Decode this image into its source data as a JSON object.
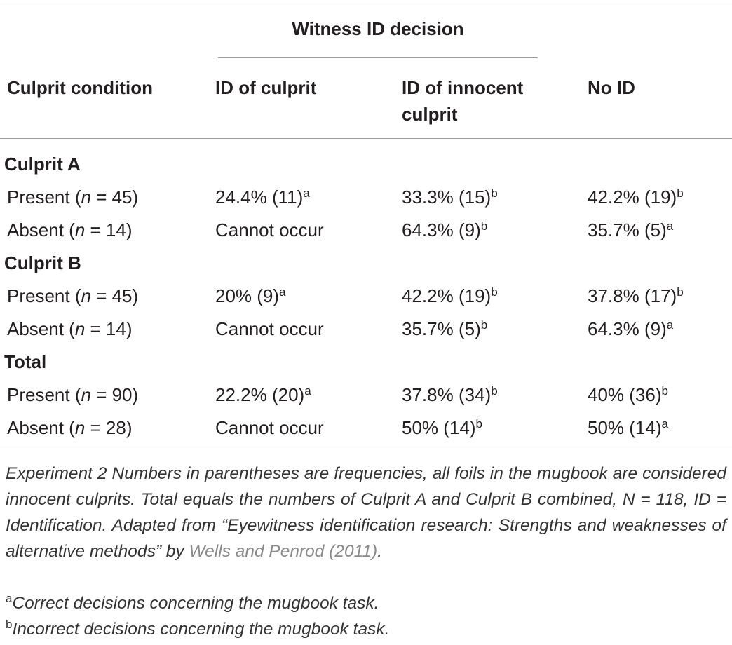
{
  "table": {
    "group_header": "Witness ID decision",
    "columns": [
      "Culprit condition",
      "ID of culprit",
      "ID of innocent culprit",
      "No ID"
    ],
    "sections": [
      {
        "title": "Culprit A",
        "rows": [
          {
            "label": [
              "Present (",
              "n",
              " = 45)"
            ],
            "cells": [
              {
                "text": "24.4% (11)",
                "sup": "a"
              },
              {
                "text": "33.3% (15)",
                "sup": "b"
              },
              {
                "text": "42.2% (19)",
                "sup": "b"
              }
            ]
          },
          {
            "label": [
              "Absent (",
              "n",
              " = 14)"
            ],
            "cells": [
              {
                "text": "Cannot occur"
              },
              {
                "text": "64.3% (9)",
                "sup": "b"
              },
              {
                "text": "35.7% (5)",
                "sup": "a"
              }
            ]
          }
        ]
      },
      {
        "title": "Culprit B",
        "rows": [
          {
            "label": [
              "Present (",
              "n",
              " = 45)"
            ],
            "cells": [
              {
                "text": "20% (9)",
                "sup": "a"
              },
              {
                "text": "42.2% (19)",
                "sup": "b"
              },
              {
                "text": "37.8% (17)",
                "sup": "b"
              }
            ]
          },
          {
            "label": [
              "Absent (",
              "n",
              " = 14)"
            ],
            "cells": [
              {
                "text": "Cannot occur"
              },
              {
                "text": "35.7% (5)",
                "sup": "b"
              },
              {
                "text": "64.3% (9)",
                "sup": "a"
              }
            ]
          }
        ]
      },
      {
        "title": "Total",
        "rows": [
          {
            "label": [
              "Present (",
              "n",
              " = 90)"
            ],
            "cells": [
              {
                "text": "22.2% (20)",
                "sup": "a"
              },
              {
                "text": "37.8% (34)",
                "sup": "b"
              },
              {
                "text": "40% (36)",
                "sup": "b"
              }
            ]
          },
          {
            "label": [
              "Absent (",
              "n",
              " = 28)"
            ],
            "cells": [
              {
                "text": "Cannot occur"
              },
              {
                "text": "50% (14)",
                "sup": "b"
              },
              {
                "text": "50% (14)",
                "sup": "a"
              }
            ]
          }
        ]
      }
    ],
    "note": {
      "text": "Experiment 2 Numbers in parentheses are frequencies, all foils in the mugbook are considered innocent culprits. Total equals the numbers of Culprit A and Culprit B combined, N = 118, ID = Identification. Adapted from “Eyewitness identification research: Strengths and weaknesses of alternative methods” by ",
      "link": "Wells and Penrod (2011)",
      "end": "."
    },
    "footnotes": [
      {
        "sup": "a",
        "text": "Correct decisions concerning the mugbook task."
      },
      {
        "sup": "b",
        "text": "Incorrect decisions concerning the mugbook task."
      }
    ]
  }
}
